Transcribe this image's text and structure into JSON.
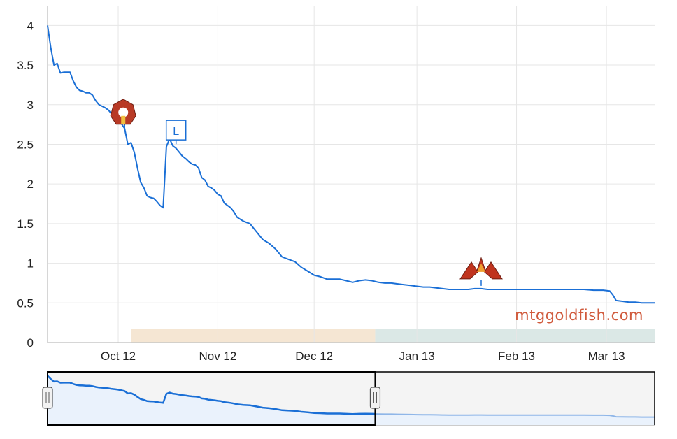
{
  "watermark": "mtggoldfish.com",
  "colors": {
    "line": "#1a6fd6",
    "grid": "#e6e6e6",
    "band_period_1": "#f5e6d3",
    "band_period_2": "#dbe8e6",
    "navigator_fill": "#eaf2fc",
    "navigator_mask": "#f4f4f4",
    "navigator_line_outside": "#8fb6e8"
  },
  "markers": [
    {
      "date": "2012-10-14",
      "icon": "return-to-ravnica-set-icon",
      "label": ""
    },
    {
      "date": "2012-10-30",
      "icon": "league-flag-icon",
      "label": "L"
    },
    {
      "date": "2013-02-02",
      "icon": "gatecrash-set-icon",
      "label": ""
    }
  ],
  "chart_data": {
    "type": "line",
    "title": "",
    "xlabel": "",
    "ylabel": "",
    "ylim": [
      0,
      4.25
    ],
    "yticks": [
      "0",
      "0.5",
      "1",
      "1.5",
      "2",
      "2.5",
      "3",
      "3.5",
      "4"
    ],
    "xticks": [
      {
        "date": "2012-10-12",
        "label": "Oct 12"
      },
      {
        "date": "2012-11-12",
        "label": "Nov 12"
      },
      {
        "date": "2012-12-12",
        "label": "Dec 12"
      },
      {
        "date": "2013-01-13",
        "label": "Jan 13"
      },
      {
        "date": "2013-02-13",
        "label": "Feb 13"
      },
      {
        "date": "2013-03-13",
        "label": "Mar 13"
      }
    ],
    "xrange": [
      "2012-09-20",
      "2013-03-28"
    ],
    "grid": true,
    "background_bands": [
      {
        "from": "2012-10-16",
        "to": "2012-12-31",
        "color": "#f5e6d3"
      },
      {
        "from": "2012-12-31",
        "to": "2013-03-28",
        "color": "#dbe8e6"
      }
    ],
    "series": [
      {
        "x": [
          "2012-09-20",
          "2012-09-21",
          "2012-09-22",
          "2012-09-23",
          "2012-09-24",
          "2012-09-25",
          "2012-09-26",
          "2012-09-27",
          "2012-09-28",
          "2012-09-29",
          "2012-09-30",
          "2012-10-01",
          "2012-10-02",
          "2012-10-03",
          "2012-10-04",
          "2012-10-05",
          "2012-10-06",
          "2012-10-07",
          "2012-10-08",
          "2012-10-09",
          "2012-10-10",
          "2012-10-11",
          "2012-10-12",
          "2012-10-13",
          "2012-10-14",
          "2012-10-15",
          "2012-10-16",
          "2012-10-17",
          "2012-10-18",
          "2012-10-19",
          "2012-10-20",
          "2012-10-21",
          "2012-10-22",
          "2012-10-23",
          "2012-10-24",
          "2012-10-25",
          "2012-10-26",
          "2012-10-27",
          "2012-10-28",
          "2012-10-29",
          "2012-10-30",
          "2012-10-31",
          "2012-11-01",
          "2012-11-02",
          "2012-11-03",
          "2012-11-04",
          "2012-11-05",
          "2012-11-06",
          "2012-11-07",
          "2012-11-08",
          "2012-11-09",
          "2012-11-10",
          "2012-11-11",
          "2012-11-12",
          "2012-11-13",
          "2012-11-14",
          "2012-11-15",
          "2012-11-16",
          "2012-11-17",
          "2012-11-18",
          "2012-11-20",
          "2012-11-22",
          "2012-11-24",
          "2012-11-26",
          "2012-11-28",
          "2012-11-30",
          "2012-12-02",
          "2012-12-04",
          "2012-12-06",
          "2012-12-08",
          "2012-12-10",
          "2012-12-12",
          "2012-12-14",
          "2012-12-16",
          "2012-12-18",
          "2012-12-20",
          "2012-12-22",
          "2012-12-24",
          "2012-12-26",
          "2012-12-28",
          "2012-12-30",
          "2013-01-01",
          "2013-01-03",
          "2013-01-05",
          "2013-01-07",
          "2013-01-09",
          "2013-01-11",
          "2013-01-13",
          "2013-01-15",
          "2013-01-17",
          "2013-01-19",
          "2013-01-21",
          "2013-01-23",
          "2013-01-25",
          "2013-01-27",
          "2013-01-29",
          "2013-01-31",
          "2013-02-02",
          "2013-02-04",
          "2013-02-06",
          "2013-02-08",
          "2013-02-10",
          "2013-02-13",
          "2013-02-16",
          "2013-02-19",
          "2013-02-22",
          "2013-02-25",
          "2013-02-28",
          "2013-03-03",
          "2013-03-06",
          "2013-03-09",
          "2013-03-12",
          "2013-03-14",
          "2013-03-15",
          "2013-03-16",
          "2013-03-18",
          "2013-03-20",
          "2013-03-22",
          "2013-03-24",
          "2013-03-26",
          "2013-03-28"
        ],
        "values": [
          4.0,
          3.72,
          3.5,
          3.52,
          3.4,
          3.41,
          3.41,
          3.41,
          3.3,
          3.22,
          3.18,
          3.17,
          3.15,
          3.15,
          3.12,
          3.05,
          3.0,
          2.98,
          2.96,
          2.93,
          2.88,
          2.85,
          2.82,
          2.76,
          2.7,
          2.5,
          2.52,
          2.4,
          2.2,
          2.02,
          1.95,
          1.85,
          1.83,
          1.82,
          1.78,
          1.73,
          1.7,
          2.47,
          2.57,
          2.48,
          2.45,
          2.4,
          2.35,
          2.32,
          2.28,
          2.25,
          2.24,
          2.2,
          2.08,
          2.05,
          1.97,
          1.95,
          1.92,
          1.87,
          1.85,
          1.76,
          1.73,
          1.7,
          1.65,
          1.58,
          1.53,
          1.5,
          1.4,
          1.3,
          1.25,
          1.18,
          1.08,
          1.05,
          1.02,
          0.95,
          0.9,
          0.85,
          0.83,
          0.8,
          0.8,
          0.8,
          0.78,
          0.76,
          0.78,
          0.79,
          0.78,
          0.76,
          0.75,
          0.75,
          0.74,
          0.73,
          0.72,
          0.71,
          0.7,
          0.7,
          0.69,
          0.68,
          0.67,
          0.67,
          0.67,
          0.67,
          0.68,
          0.68,
          0.67,
          0.67,
          0.67,
          0.67,
          0.67,
          0.67,
          0.67,
          0.67,
          0.67,
          0.67,
          0.67,
          0.67,
          0.66,
          0.66,
          0.65,
          0.6,
          0.53,
          0.52,
          0.51,
          0.51,
          0.5,
          0.5,
          0.5
        ]
      }
    ]
  }
}
